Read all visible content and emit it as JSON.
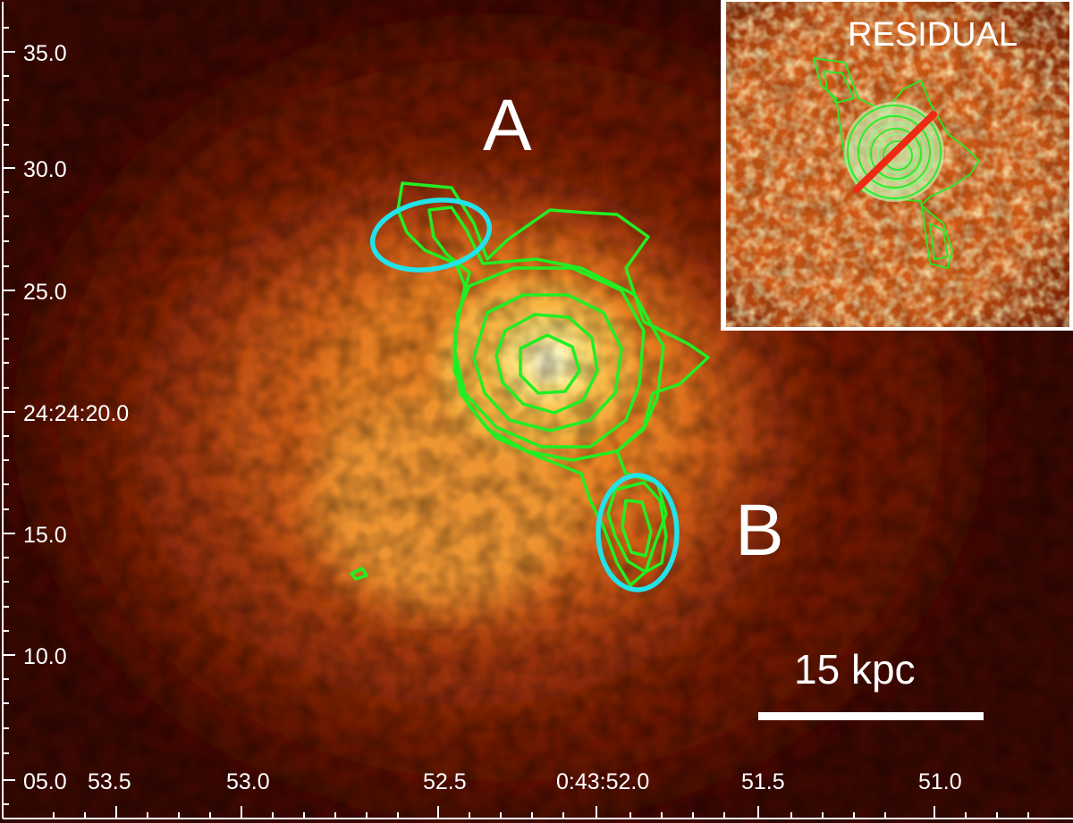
{
  "image": {
    "colormap": "heat",
    "colors": {
      "background": "#000000",
      "emission_core": "#fffbd0",
      "emission_mid": "#e88020",
      "emission_outer": "#6a1405",
      "contours": "#22ee22",
      "regions": "#22e2ea",
      "scale_bar": "#ffffff",
      "inset_border": "#ffffff",
      "inset_cut_line": "#ee2a14"
    }
  },
  "axes": {
    "x_ticks": [
      "53.5",
      "53.0",
      "52.5",
      "0:43:52.0",
      "51.5",
      "51.0"
    ],
    "y_ticks": [
      "35.0",
      "30.0",
      "25.0",
      "24:24:20.0",
      "15.0",
      "10.0",
      "05.0"
    ]
  },
  "labels": {
    "region_a": "A",
    "region_b": "B"
  },
  "scale_bar": {
    "label": "15 kpc"
  },
  "inset": {
    "title": "RESIDUAL"
  }
}
